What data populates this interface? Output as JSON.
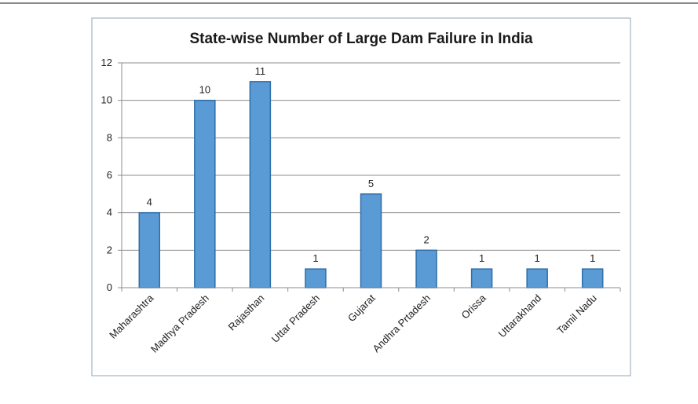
{
  "chart_data": {
    "type": "bar",
    "title": "State-wise Number of Large Dam Failure in India",
    "xlabel": "",
    "ylabel": "",
    "categories": [
      "Maharashtra",
      "Madhya Pradesh",
      "Rajasthan",
      "Uttar Pradesh",
      "Gujarat",
      "Andhra Prtadesh",
      "Orissa",
      "Uttarakhand",
      "Tamil Nadu"
    ],
    "values": [
      4,
      10,
      11,
      1,
      5,
      2,
      1,
      1,
      1
    ],
    "ylim": [
      0,
      12
    ],
    "yticks": [
      "0",
      "2",
      "4",
      "6",
      "8",
      "10",
      "12"
    ],
    "grid": true,
    "legend": "none",
    "bar_color": "#5b9bd5",
    "bar_edge_color": "#2f6ea8",
    "grid_color": "#8c8c8c"
  }
}
